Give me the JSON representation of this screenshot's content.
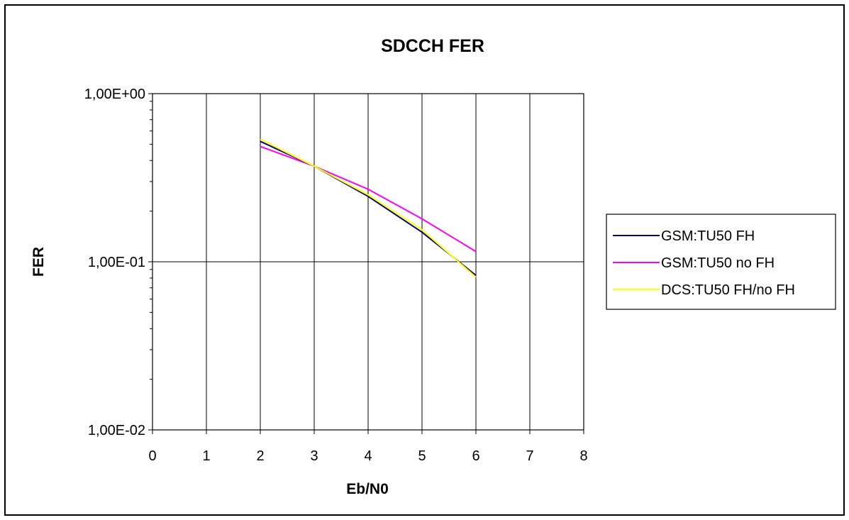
{
  "chart_data": {
    "type": "line",
    "title": "SDCCH  FER",
    "xlabel": "Eb/N0",
    "ylabel": "FER",
    "xlim": [
      0,
      8
    ],
    "ylim": [
      0.01,
      1
    ],
    "yscale": "log",
    "x_ticks": [
      "0",
      "1",
      "2",
      "3",
      "4",
      "5",
      "6",
      "7",
      "8"
    ],
    "y_ticks": [
      {
        "value": 1,
        "label": "1,00E+00"
      },
      {
        "value": 0.1,
        "label": "1,00E-01"
      },
      {
        "value": 0.01,
        "label": "1,00E-02"
      }
    ],
    "grid": "vertical and major horizontal gridlines",
    "legend_position": "right",
    "series": [
      {
        "name": "GSM:TU50 FH",
        "color": "#000080",
        "x": [
          2,
          3,
          4,
          5,
          6
        ],
        "values": [
          0.52,
          0.37,
          0.245,
          0.15,
          0.083
        ]
      },
      {
        "name": "GSM:TU50 no  FH",
        "color": "#ff00ff",
        "x": [
          2,
          3,
          4,
          5,
          6
        ],
        "values": [
          0.485,
          0.37,
          0.27,
          0.18,
          0.115
        ]
      },
      {
        "name": "DCS:TU50 FH/no FH",
        "color": "#ffff00",
        "x": [
          2,
          3,
          4,
          5,
          6
        ],
        "values": [
          0.535,
          0.37,
          0.25,
          0.155,
          0.081
        ]
      }
    ]
  }
}
